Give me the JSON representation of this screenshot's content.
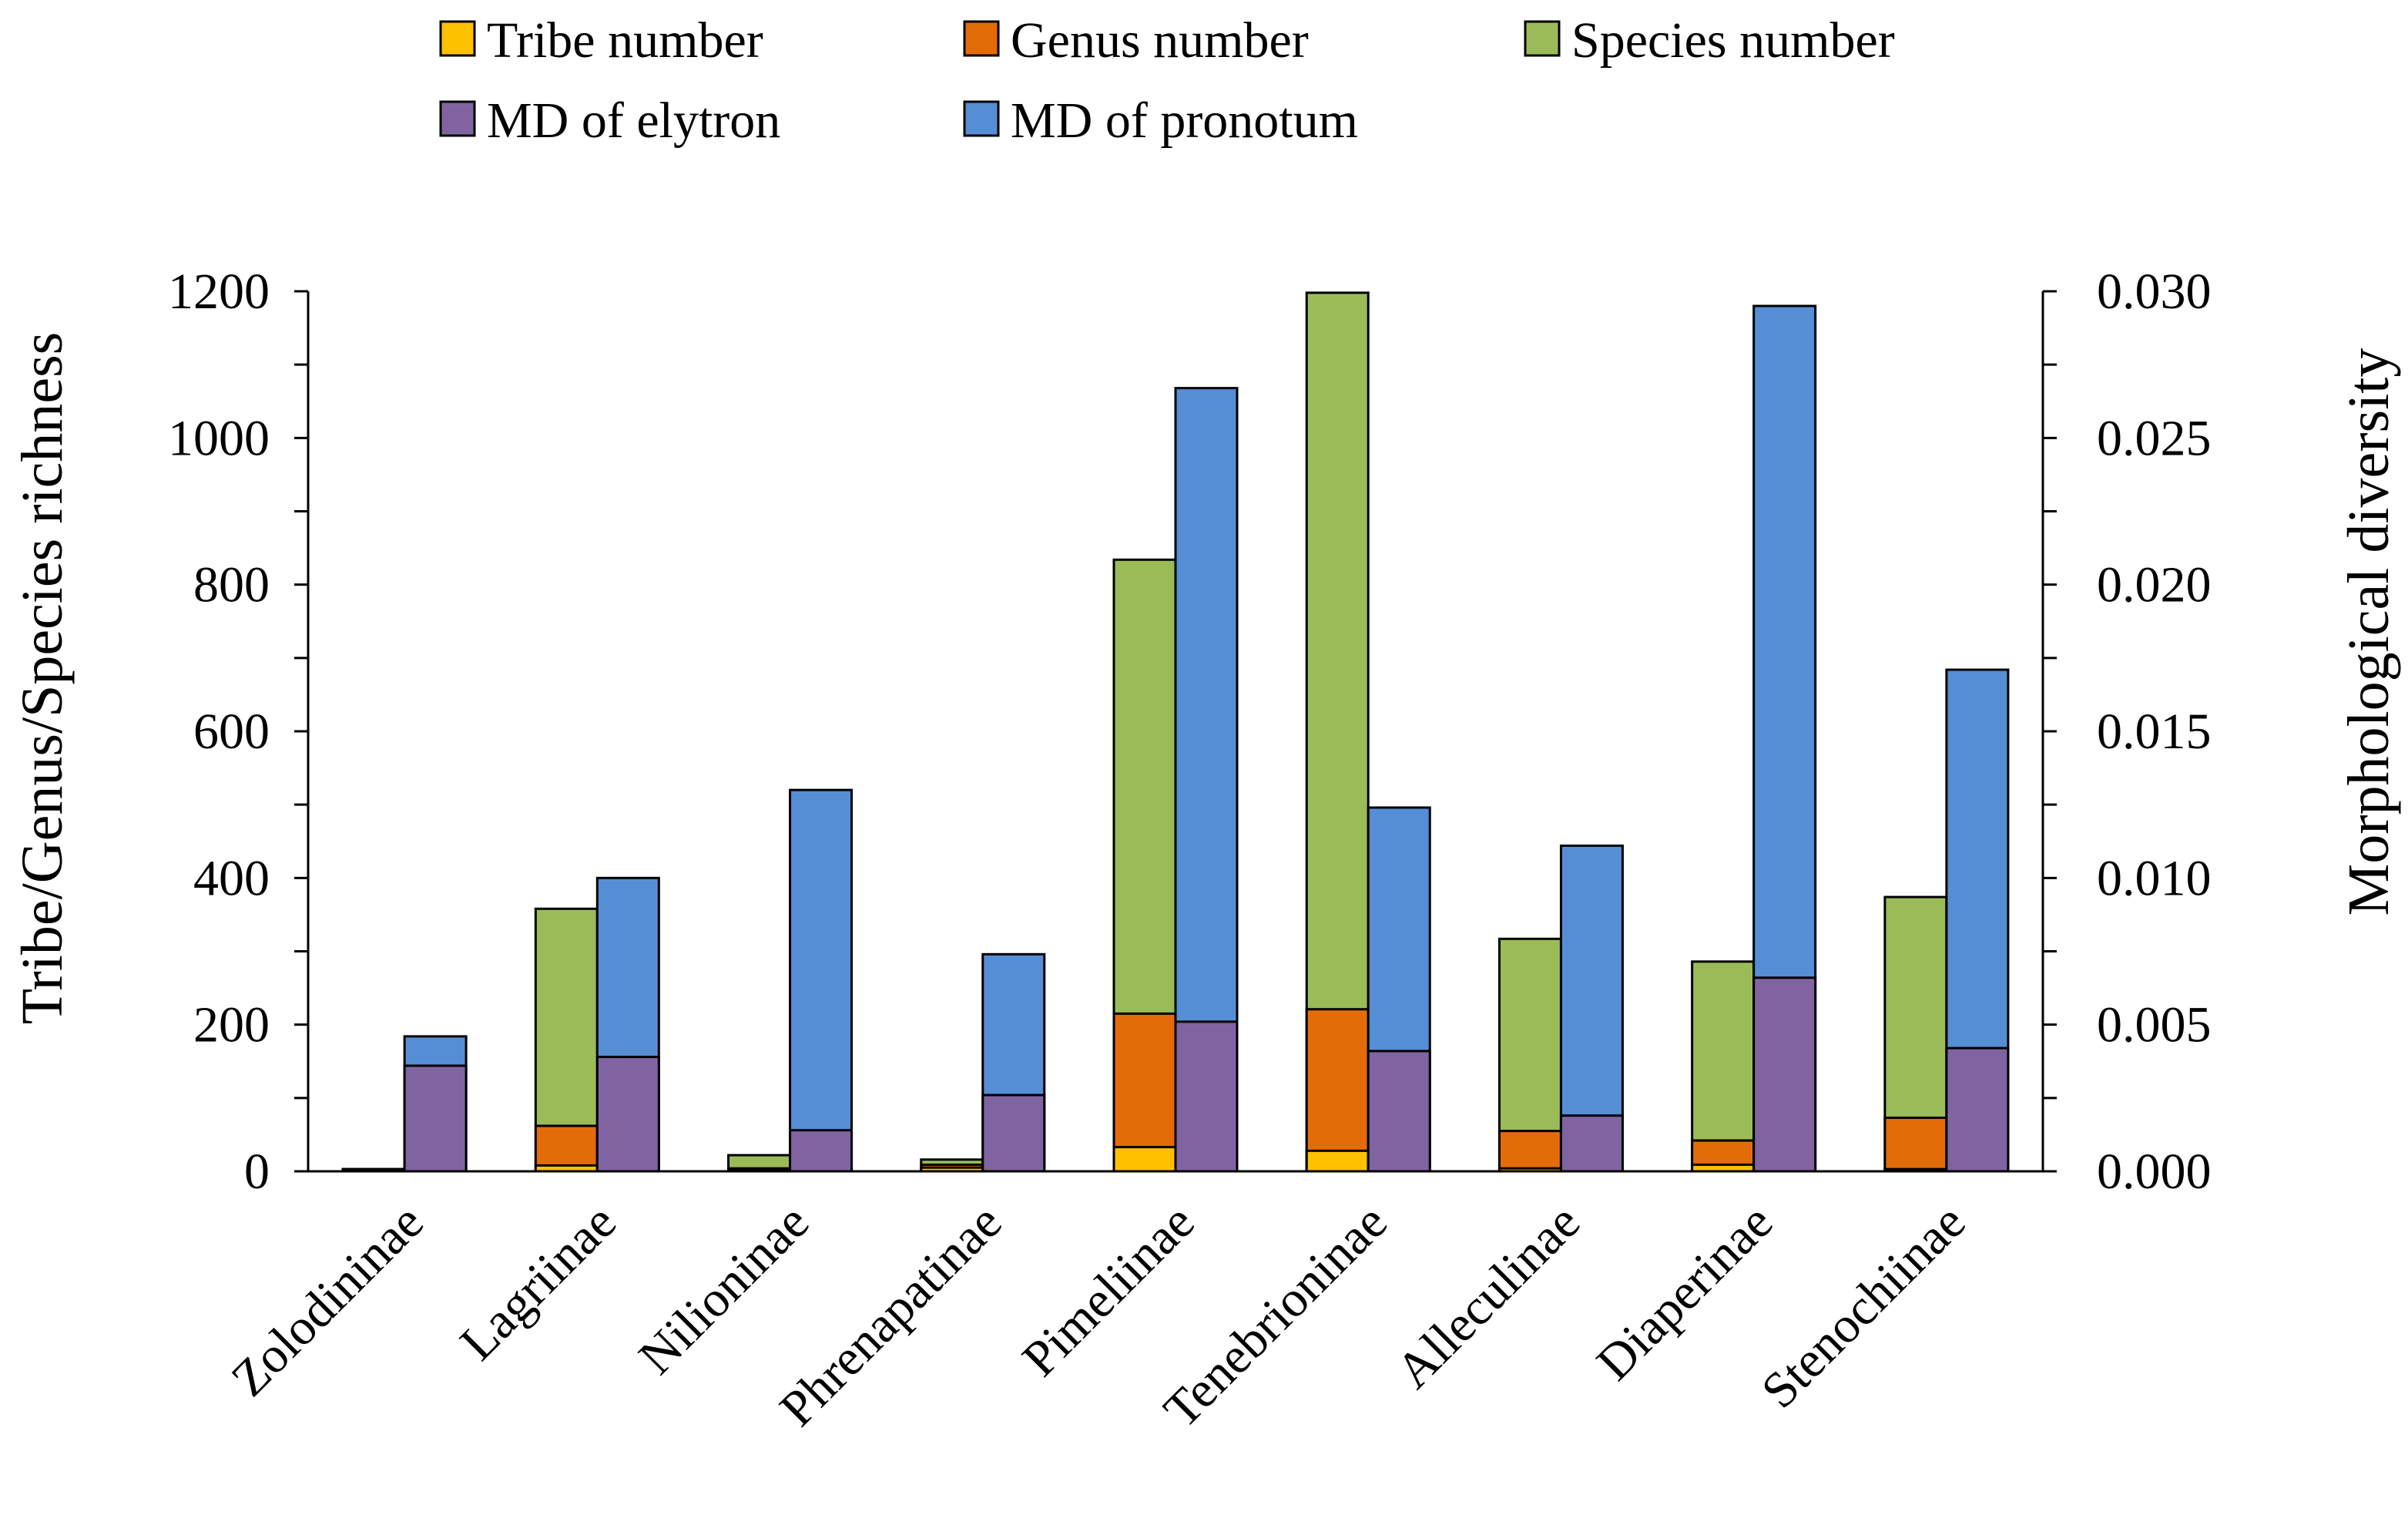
{
  "chart_data": {
    "type": "bar",
    "subtype": "stacked-paired-dual-axis",
    "categories": [
      "Zolodininae",
      "Lagriinae",
      "Nilioninae",
      "Phrenapatinae",
      "Pimeliinae",
      "Tenebrioninae",
      "Alleculinae",
      "Diaperinae",
      "Stenochiinae"
    ],
    "richness_series": [
      {
        "name": "Tribe number",
        "color": "#FFC000",
        "values": [
          1,
          8,
          1,
          5,
          33,
          28,
          4,
          9,
          3
        ]
      },
      {
        "name": "Genus number",
        "color": "#E36C09",
        "values": [
          3,
          62,
          4,
          9,
          215,
          221,
          55,
          42,
          73
        ]
      },
      {
        "name": "Species number",
        "color": "#9BBB59",
        "values": [
          3,
          358,
          22,
          16,
          834,
          1198,
          317,
          286,
          374
        ]
      }
    ],
    "md_series": [
      {
        "name": "MD of elytron",
        "color": "#8064A2",
        "values": [
          0.0036,
          0.0039,
          0.0014,
          0.0026,
          0.0051,
          0.0041,
          0.0019,
          0.0066,
          0.0042
        ]
      },
      {
        "name": "MD of pronotum",
        "color": "#558ED5",
        "values": [
          0.0046,
          0.01,
          0.013,
          0.0074,
          0.0267,
          0.0124,
          0.0111,
          0.0295,
          0.0171
        ]
      }
    ],
    "legend": [
      "Tribe number",
      "Genus number",
      "Species number",
      "MD of elytron",
      "MD of pronotum"
    ],
    "legend_position": "top",
    "ylabel": "Tribe/Genus/Species richness",
    "y2label": "Morphological  diversity",
    "ylim": [
      0,
      1200
    ],
    "y2lim": [
      0,
      0.03
    ],
    "yticks": [
      "0",
      "200",
      "400",
      "600",
      "800",
      "1000",
      "1200"
    ],
    "y2ticks": [
      "0.000",
      "0.005",
      "0.010",
      "0.015",
      "0.020",
      "0.025",
      "0.030"
    ],
    "grid": false
  }
}
